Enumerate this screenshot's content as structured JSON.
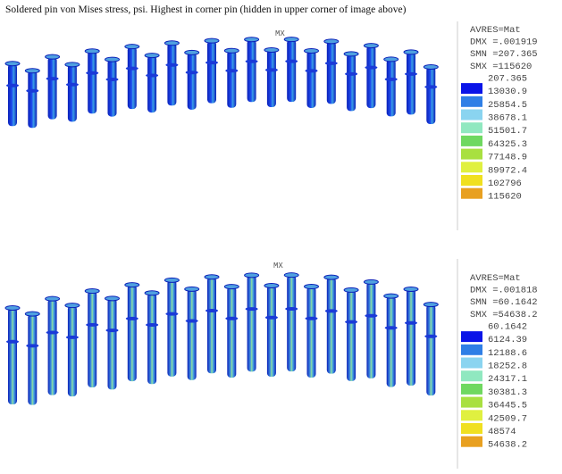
{
  "caption": "Soldered pin von Mises stress, psi.  Highest in corner pin (hidden in upper corner of image above)",
  "panels": [
    {
      "mx_label": "MX",
      "legend": {
        "header": [
          "AVRES=Mat",
          "DMX =.001919",
          "SMN =207.365",
          "SMX =115620"
        ],
        "values": [
          "207.365",
          "13030.9",
          "25854.5",
          "38678.1",
          "51501.7",
          "64325.3",
          "77148.9",
          "89972.4",
          "102796",
          "115620"
        ]
      }
    },
    {
      "mx_label": "MX",
      "legend": {
        "header": [
          "AVRES=Mat",
          "DMX =.001818",
          "SMN =60.1642",
          "SMX =54638.2"
        ],
        "values": [
          "60.1642",
          "6124.39",
          "12188.6",
          "18252.8",
          "24317.1",
          "30381.3",
          "36445.5",
          "42509.7",
          "48574",
          "54638.2"
        ]
      }
    }
  ]
}
